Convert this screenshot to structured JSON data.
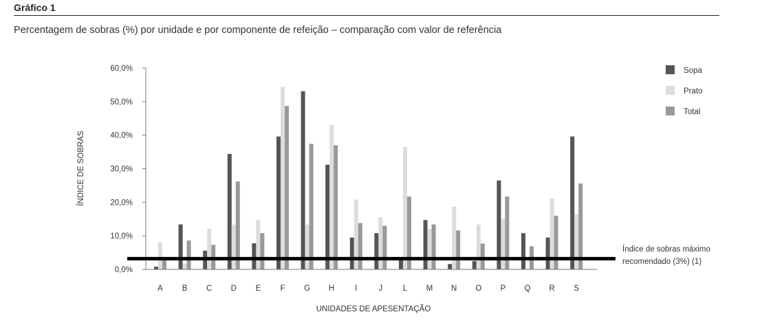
{
  "header": {
    "title": "Gráfico 1",
    "subtitle": "Percentagem de sobras (%) por unidade e por componente de refeição – comparação com valor de referência"
  },
  "chart_data": {
    "type": "bar",
    "title": "Percentagem de sobras (%) por unidade e por componente de refeição – comparação com valor de referência",
    "xlabel": "UNIDADES DE APESENTAÇÃO",
    "ylabel": "ÍNDICE DE SOBRAS",
    "ylim": [
      0,
      60
    ],
    "yticks": [
      "0,0%",
      "10,0%",
      "20,0%",
      "30,0%",
      "40,0%",
      "50,0%",
      "60,0%"
    ],
    "categories": [
      "A",
      "B",
      "C",
      "D",
      "E",
      "F",
      "G",
      "H",
      "I",
      "J",
      "L",
      "M",
      "N",
      "O",
      "P",
      "Q",
      "R",
      "S"
    ],
    "series": [
      {
        "name": "Sopa",
        "color": "#555555",
        "values": [
          0.8,
          13.4,
          5.6,
          34.4,
          7.8,
          39.6,
          53.1,
          31.2,
          9.5,
          10.8,
          3.1,
          14.7,
          1.6,
          2.5,
          26.5,
          10.8,
          9.5,
          39.6
        ]
      },
      {
        "name": "Prato",
        "color": "#dddddd",
        "values": [
          8.1,
          1.7,
          12.1,
          13.4,
          14.8,
          54.4,
          13.4,
          43.1,
          20.8,
          15.5,
          36.5,
          12.1,
          18.7,
          13.4,
          15.1,
          0,
          21.2,
          16.5
        ]
      },
      {
        "name": "Total",
        "color": "#999999",
        "values": [
          3.1,
          8.6,
          7.3,
          26.2,
          10.8,
          48.7,
          37.4,
          37.0,
          13.8,
          13.0,
          21.7,
          13.4,
          11.6,
          7.7,
          21.7,
          6.9,
          16.0,
          25.6
        ]
      }
    ],
    "reference_line": {
      "value": 3,
      "label_line1": "Índice de sobras máximo",
      "label_line2": "recomendado (3%) (1)"
    },
    "legend": "top-right",
    "grid": false
  }
}
